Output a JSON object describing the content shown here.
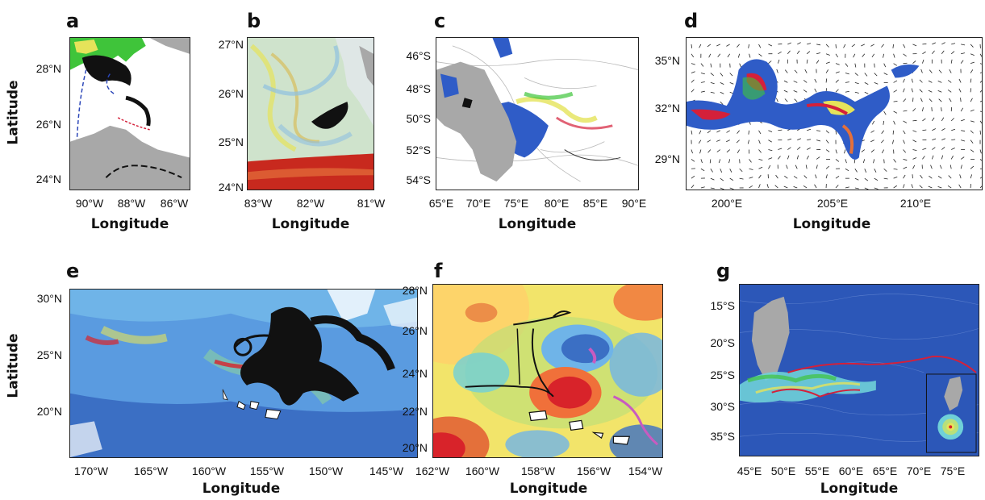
{
  "panels": [
    {
      "id": "a",
      "label": "a",
      "xticks": [
        "90°W",
        "88°W",
        "86°W"
      ],
      "yticks": [
        "28°N",
        "26°N",
        "24°N"
      ],
      "xlabel": "Longitude",
      "ylabel": "Latitude"
    },
    {
      "id": "b",
      "label": "b",
      "xticks": [
        "83°W",
        "82°W",
        "81°W"
      ],
      "yticks": [
        "27°N",
        "26°N",
        "25°N",
        "24°N"
      ],
      "xlabel": "Longitude",
      "ylabel": ""
    },
    {
      "id": "c",
      "label": "c",
      "xticks": [
        "65°E",
        "70°E",
        "75°E",
        "80°E",
        "85°E",
        "90°E"
      ],
      "yticks": [
        "46°S",
        "48°S",
        "50°S",
        "52°S",
        "54°S"
      ],
      "xlabel": "Longitude",
      "ylabel": ""
    },
    {
      "id": "d",
      "label": "d",
      "xticks": [
        "200°E",
        "205°E",
        "210°E"
      ],
      "yticks": [
        "35°N",
        "32°N",
        "29°N"
      ],
      "xlabel": "Longitude",
      "ylabel": ""
    },
    {
      "id": "e",
      "label": "e",
      "xticks": [
        "170°W",
        "165°W",
        "160°W",
        "155°W",
        "150°W",
        "145°W"
      ],
      "yticks": [
        "30°N",
        "25°N",
        "20°N"
      ],
      "xlabel": "Longitude",
      "ylabel": "Latitude"
    },
    {
      "id": "f",
      "label": "f",
      "xticks": [
        "162°W",
        "160°W",
        "158°W",
        "156°W",
        "154°W"
      ],
      "yticks": [
        "28°N",
        "26°N",
        "24°N",
        "22°N",
        "20°N"
      ],
      "xlabel": "Longitude",
      "ylabel": ""
    },
    {
      "id": "g",
      "label": "g",
      "xticks": [
        "45°E",
        "50°E",
        "55°E",
        "60°E",
        "65°E",
        "70°E",
        "75°E"
      ],
      "yticks": [
        "15°S",
        "20°S",
        "25°S",
        "30°S",
        "35°S"
      ],
      "xlabel": "Longitude",
      "ylabel": ""
    }
  ],
  "colors": {
    "land": "#a8a8a8",
    "tracer_black": "#111111",
    "tracer_magenta": "#c85bc0",
    "track_red": "#d4203a",
    "sst_blue": "#3b6fc4",
    "sst_red": "#d8232a",
    "green_patch": "#3fc43a",
    "yellow_patch": "#e5e35a"
  }
}
